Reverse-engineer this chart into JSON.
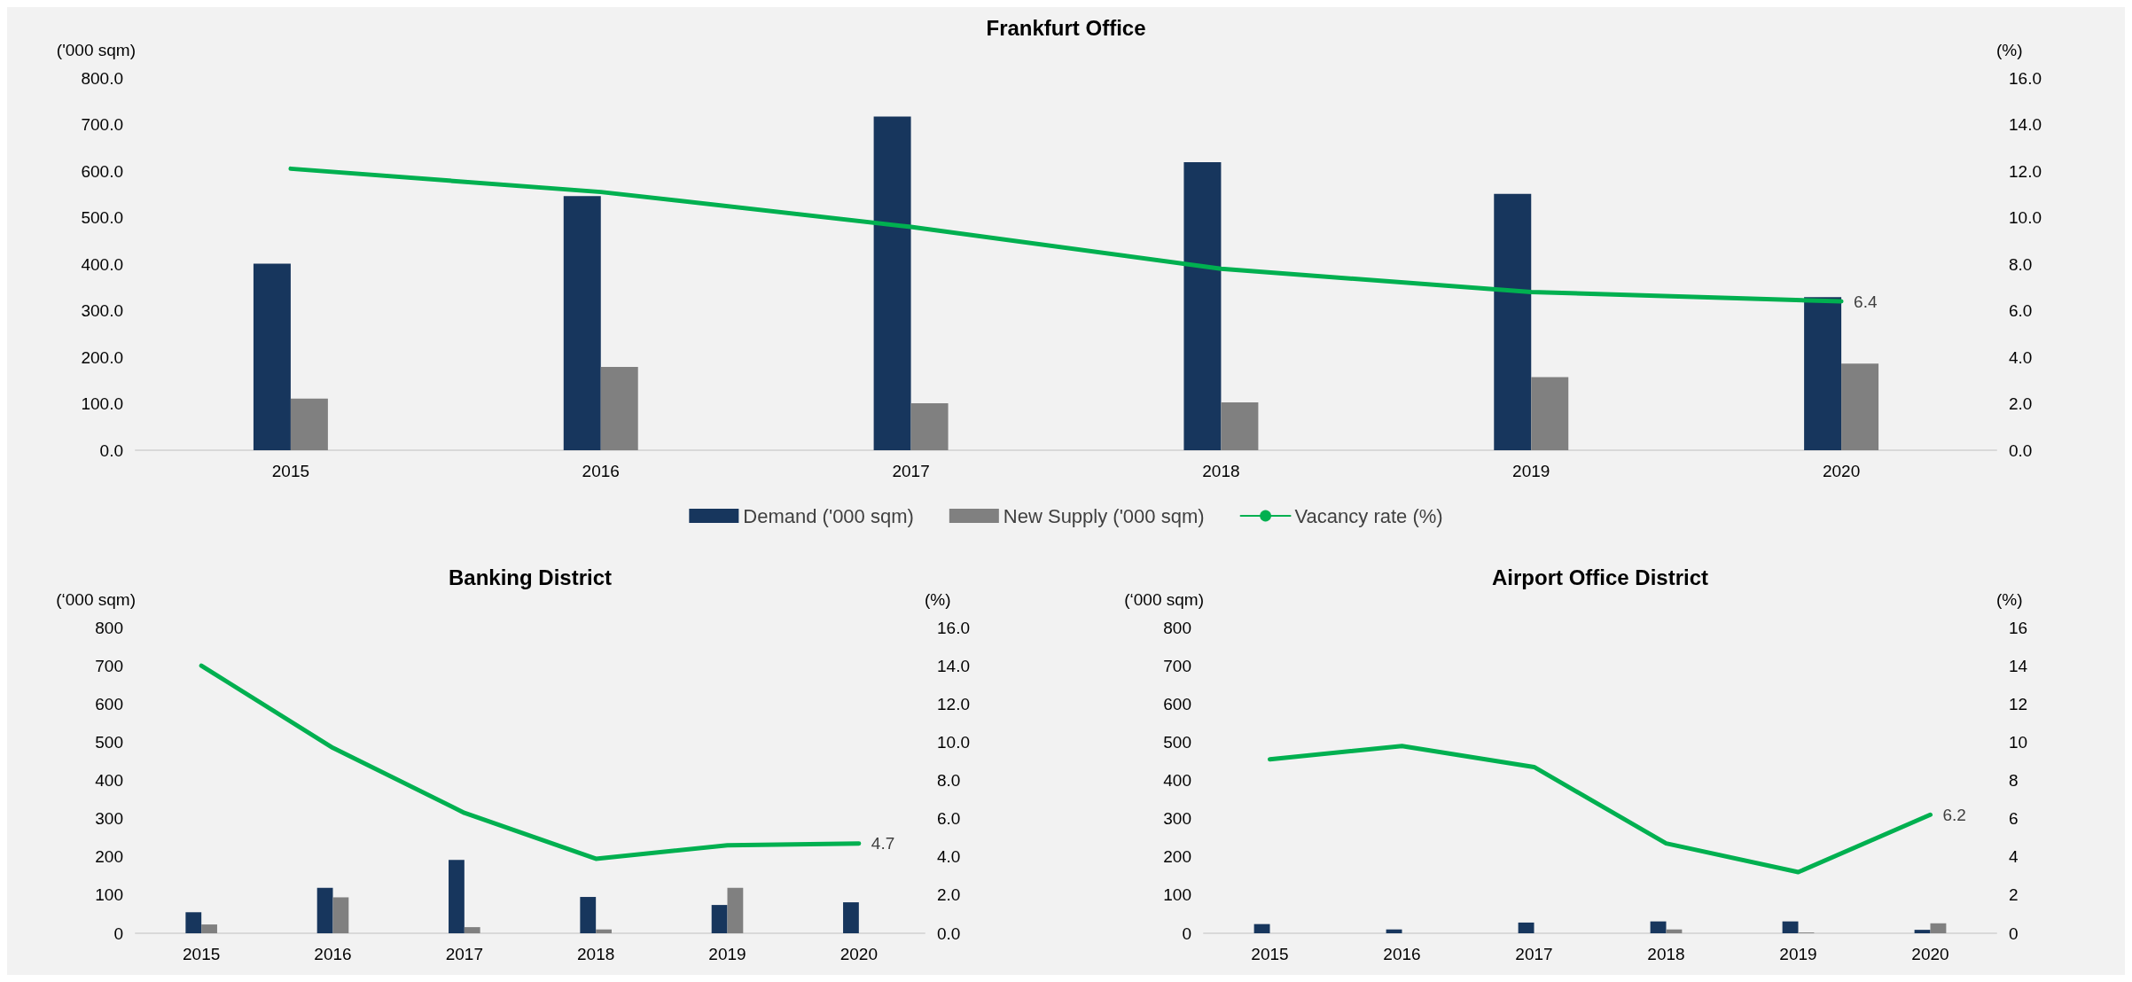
{
  "chart_data": [
    {
      "type": "bar",
      "title": "Frankfurt Office",
      "ylabel": "('000 sqm)",
      "y2label": "(%)",
      "categories": [
        "2015",
        "2016",
        "2017",
        "2018",
        "2019",
        "2020"
      ],
      "series": [
        {
          "name": "Demand ('000 sqm)",
          "color": "#17365d",
          "values": [
            401,
            546,
            717,
            619,
            551,
            329
          ]
        },
        {
          "name": "New Supply ('000 sqm)",
          "color": "#808080",
          "values": [
            111,
            179,
            101,
            103,
            157,
            186
          ]
        },
        {
          "name": "Vacancy rate (%)",
          "type": "line",
          "axis": "y2",
          "color": "#00b050",
          "values": [
            12.1,
            11.1,
            9.6,
            7.8,
            6.8,
            6.4
          ],
          "value_labels": [
            null,
            null,
            null,
            null,
            null,
            "6.4"
          ]
        }
      ],
      "ylim": [
        0,
        800
      ],
      "yticks": [
        {
          "value": 0,
          "label": "0.0"
        },
        {
          "value": 100,
          "label": "100.0"
        },
        {
          "value": 200,
          "label": "200.0"
        },
        {
          "value": 300,
          "label": "300.0"
        },
        {
          "value": 400,
          "label": "400.0"
        },
        {
          "value": 500,
          "label": "500.0"
        },
        {
          "value": 600,
          "label": "600.0"
        },
        {
          "value": 700,
          "label": "700.0"
        },
        {
          "value": 800,
          "label": "800.0"
        }
      ],
      "y2lim": [
        0,
        16
      ],
      "y2ticks": [
        {
          "value": 0,
          "label": "0.0"
        },
        {
          "value": 2,
          "label": "2.0"
        },
        {
          "value": 4,
          "label": "4.0"
        },
        {
          "value": 6,
          "label": "6.0"
        },
        {
          "value": 8,
          "label": "8.0"
        },
        {
          "value": 10,
          "label": "10.0"
        },
        {
          "value": 12,
          "label": "12.0"
        },
        {
          "value": 14,
          "label": "14.0"
        },
        {
          "value": 16,
          "label": "16.0"
        }
      ],
      "grid": false,
      "legend": "bottom",
      "marker": "none"
    },
    {
      "type": "bar",
      "title": "Banking District",
      "ylabel": "(‘000 sqm)",
      "y2label": "(%)",
      "categories": [
        "2015",
        "2016",
        "2017",
        "2018",
        "2019",
        "2020"
      ],
      "series": [
        {
          "color": "#17365d",
          "values": [
            55,
            119,
            192,
            95,
            74,
            81
          ]
        },
        {
          "color": "#808080",
          "values": [
            23,
            94,
            16,
            10,
            119,
            null
          ]
        },
        {
          "type": "line",
          "axis": "y2",
          "color": "#00b050",
          "values": [
            14.0,
            9.7,
            6.3,
            3.9,
            4.6,
            4.7
          ],
          "value_labels": [
            null,
            null,
            null,
            null,
            null,
            "4.7"
          ]
        }
      ],
      "ylim": [
        0,
        800
      ],
      "yticks": [
        0,
        100,
        200,
        300,
        400,
        500,
        600,
        700,
        800
      ],
      "y2lim": [
        0,
        16
      ],
      "y2ticks": [
        {
          "value": 0,
          "label": "0.0"
        },
        {
          "value": 2,
          "label": "2.0"
        },
        {
          "value": 4,
          "label": "4.0"
        },
        {
          "value": 6,
          "label": "6.0"
        },
        {
          "value": 8,
          "label": "8.0"
        },
        {
          "value": 10,
          "label": "10.0"
        },
        {
          "value": 12,
          "label": "12.0"
        },
        {
          "value": 14,
          "label": "14.0"
        },
        {
          "value": 16,
          "label": "16.0"
        }
      ],
      "grid": false,
      "marker": "none"
    },
    {
      "type": "bar",
      "title": "Airport Office District",
      "ylabel": "(‘000 sqm)",
      "y2label": "(%)",
      "categories": [
        "2015",
        "2016",
        "2017",
        "2018",
        "2019",
        "2020"
      ],
      "series": [
        {
          "color": "#17365d",
          "values": [
            24,
            10,
            28,
            31,
            31,
            9
          ]
        },
        {
          "color": "#808080",
          "values": [
            null,
            null,
            null,
            10,
            2,
            26
          ]
        },
        {
          "type": "line",
          "axis": "y2",
          "color": "#00b050",
          "values": [
            9.1,
            9.8,
            8.7,
            4.7,
            3.2,
            6.2
          ],
          "value_labels": [
            null,
            null,
            null,
            null,
            null,
            "6.2"
          ]
        }
      ],
      "ylim": [
        0,
        800
      ],
      "yticks": [
        0,
        100,
        200,
        300,
        400,
        500,
        600,
        700,
        800
      ],
      "y2lim": [
        0,
        16
      ],
      "y2ticks": [
        0,
        2,
        4,
        6,
        8,
        10,
        12,
        14,
        16
      ],
      "grid": false,
      "marker": "none"
    }
  ]
}
